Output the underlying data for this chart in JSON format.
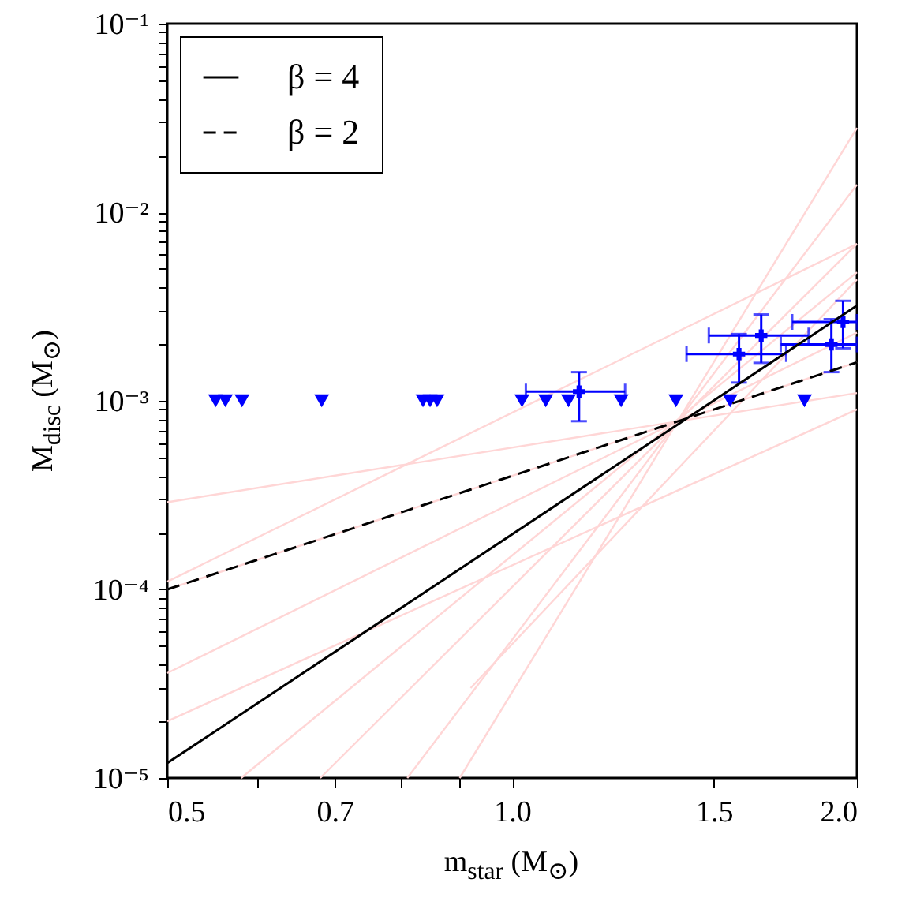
{
  "chart_data": {
    "type": "line",
    "xlabel": "m$_{star}$ (M$_{⊙}$)",
    "ylabel": "M$_{disc}$ (M$_{⊙}$)",
    "log": "xy",
    "grid": false,
    "legend": "top left",
    "xlim": [
      0.5,
      2.0
    ],
    "ylim": [
      1e-05,
      0.1
    ],
    "xticks": [
      {
        "value": 0.5,
        "label": "0.5"
      },
      {
        "value": 0.6,
        "label": null
      },
      {
        "value": 0.7,
        "label": "0.7"
      },
      {
        "value": 0.8,
        "label": null
      },
      {
        "value": 0.9,
        "label": null
      },
      {
        "value": 1,
        "label": "1.0"
      },
      {
        "value": 1.5,
        "label": "1.5"
      },
      {
        "value": 2,
        "label": "2.0"
      }
    ],
    "yticks": [
      {
        "value": 1e-05,
        "label": "10⁻⁵"
      },
      {
        "value": 2e-05,
        "label": null
      },
      {
        "value": 3e-05,
        "label": null
      },
      {
        "value": 4e-05,
        "label": null
      },
      {
        "value": 5e-05,
        "label": null
      },
      {
        "value": 6e-05,
        "label": null
      },
      {
        "value": 7e-05,
        "label": null
      },
      {
        "value": 8e-05,
        "label": null
      },
      {
        "value": 9e-05,
        "label": null
      },
      {
        "value": 0.0001,
        "label": "10⁻⁴"
      },
      {
        "value": 0.0002,
        "label": null
      },
      {
        "value": 0.0003,
        "label": null
      },
      {
        "value": 0.0004,
        "label": null
      },
      {
        "value": 0.0005,
        "label": null
      },
      {
        "value": 0.0006,
        "label": null
      },
      {
        "value": 0.0007,
        "label": null
      },
      {
        "value": 0.0008,
        "label": null
      },
      {
        "value": 0.0009,
        "label": null
      },
      {
        "value": 0.001,
        "label": "10⁻³"
      },
      {
        "value": 0.002,
        "label": null
      },
      {
        "value": 0.003,
        "label": null
      },
      {
        "value": 0.004,
        "label": null
      },
      {
        "value": 0.005,
        "label": null
      },
      {
        "value": 0.006,
        "label": null
      },
      {
        "value": 0.007,
        "label": null
      },
      {
        "value": 0.008,
        "label": null
      },
      {
        "value": 0.009,
        "label": null
      },
      {
        "value": 0.01,
        "label": "10⁻²"
      },
      {
        "value": 0.02,
        "label": null
      },
      {
        "value": 0.03,
        "label": null
      },
      {
        "value": 0.04,
        "label": null
      },
      {
        "value": 0.05,
        "label": null
      },
      {
        "value": 0.06,
        "label": null
      },
      {
        "value": 0.07,
        "label": null
      },
      {
        "value": 0.08,
        "label": null
      },
      {
        "value": 0.09,
        "label": null
      },
      {
        "value": 0.1,
        "label": "10⁻¹"
      }
    ],
    "series": [
      {
        "type": "line",
        "color": "#ffd6d6",
        "x": [
          0.5,
          2.0
        ],
        "values": [
          0.00029,
          0.0011
        ]
      },
      {
        "type": "line",
        "color": "#ffd6d6",
        "x": [
          0.5,
          2.0
        ],
        "values": [
          0.0001,
          0.0016
        ]
      },
      {
        "type": "line",
        "color": "#ffd6d6",
        "x": [
          0.5,
          2.0
        ],
        "values": [
          3.6e-05,
          0.0023
        ]
      },
      {
        "type": "line",
        "color": "#ffd6d6",
        "x": [
          0.58,
          2.0
        ],
        "values": [
          1e-05,
          0.0048
        ]
      },
      {
        "type": "line",
        "color": "#ffd6d6",
        "x": [
          0.68,
          2.0
        ],
        "values": [
          1e-05,
          0.0068
        ]
      },
      {
        "type": "line",
        "color": "#ffd6d6",
        "x": [
          0.81,
          2.0
        ],
        "values": [
          1e-05,
          0.014
        ]
      },
      {
        "type": "line",
        "color": "#ffd6d6",
        "x": [
          0.9,
          2.0
        ],
        "values": [
          1e-05,
          0.028
        ]
      },
      {
        "type": "line",
        "color": "#ffd6d6",
        "x": [
          0.5,
          2.0
        ],
        "values": [
          0.00011,
          0.0068
        ]
      },
      {
        "type": "line",
        "color": "#ffd6d6",
        "x": [
          0.92,
          2.0
        ],
        "values": [
          3e-05,
          0.0044
        ]
      },
      {
        "type": "line",
        "color": "#ffd6d6",
        "x": [
          0.5,
          2.0
        ],
        "values": [
          2e-05,
          0.0009
        ]
      },
      {
        "name": "β = 4",
        "color": "#000000",
        "line_style": "solid",
        "x": [
          0.5,
          2.0
        ],
        "values": [
          1.2e-05,
          0.0032
        ]
      },
      {
        "name": "β = 2",
        "color": "#000000",
        "line_style": "dashed",
        "x": [
          0.5,
          2.0
        ],
        "values": [
          0.0001,
          0.0016
        ]
      },
      {
        "type": "scatter",
        "color": "#0000ff",
        "marker": "triangle",
        "x": [
          0.551,
          0.562,
          0.581,
          0.682,
          0.836,
          0.848,
          0.86,
          1.02,
          1.07,
          1.12,
          1.245,
          1.39,
          1.55,
          1.8
        ],
        "values": [
          0.001,
          0.001,
          0.001,
          0.001,
          0.001,
          0.001,
          0.001,
          0.001,
          0.001,
          0.001,
          0.001,
          0.001,
          0.001,
          0.001
        ]
      },
      {
        "type": "scatter",
        "color": "#0000ff",
        "marker": "cross",
        "x": [
          1.144,
          1.578,
          1.65,
          1.9,
          1.945
        ],
        "values": [
          0.00112,
          0.00177,
          0.00222,
          0.00199,
          0.00262
        ],
        "errors": [
          [
            0.00078,
            0.00142
          ],
          [
            0.00125,
            0.00226
          ],
          [
            0.00159,
            0.00287
          ],
          [
            0.00142,
            0.00271
          ],
          [
            0.0019,
            0.00339
          ]
        ],
        "xerrors": [
          [
            1.028,
            1.255
          ],
          [
            1.42,
            1.735
          ],
          [
            1.485,
            1.815
          ],
          [
            1.716,
            2.0
          ],
          [
            1.756,
            2.0
          ]
        ]
      }
    ]
  }
}
